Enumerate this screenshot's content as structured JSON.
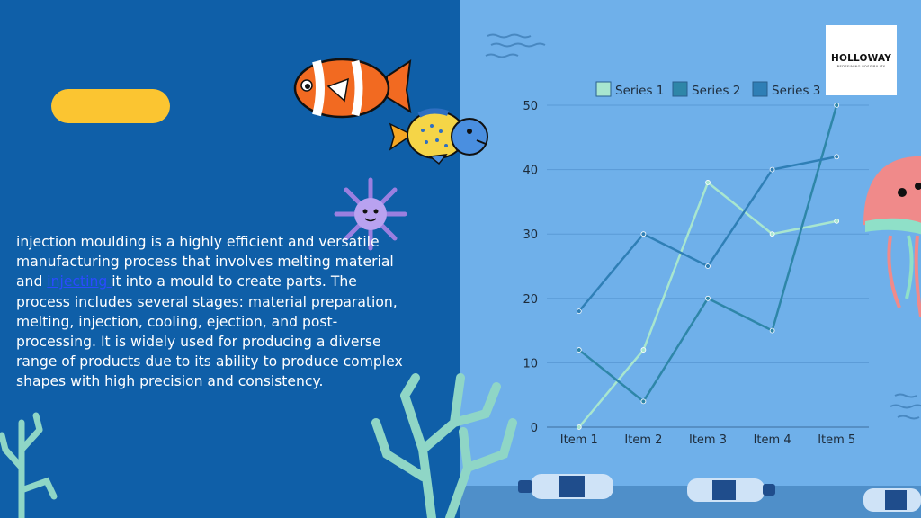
{
  "body": {
    "before": "injection moulding is a highly efficient and versatile manufacturing process that involves melting material and ",
    "link": "injecting ",
    "after": "it into a mould to create parts. The process includes several stages: material preparation, melting, injection, cooling, ejection, and post-processing. It is widely used for producing a diverse range of products due to its ability to produce complex shapes with high precision and consistency."
  },
  "logo": {
    "title": "HOLLOWAY",
    "tagline": "REDEFINING POSSIBILITY"
  },
  "colors": {
    "left_background": "#0f5fa8",
    "right_background": "#6fb0ea",
    "pill": "#fbc531",
    "series1": "#a8e6cf",
    "series2": "#2e86a8",
    "series3": "#2f7fb6"
  },
  "chart_data": {
    "type": "line",
    "categories": [
      "Item 1",
      "Item 2",
      "Item 3",
      "Item 4",
      "Item 5"
    ],
    "series": [
      {
        "name": "Series 1",
        "values": [
          0,
          12,
          38,
          30,
          32
        ]
      },
      {
        "name": "Series 2",
        "values": [
          12,
          4,
          20,
          15,
          50
        ]
      },
      {
        "name": "Series 3",
        "values": [
          18,
          30,
          25,
          40,
          42
        ]
      }
    ],
    "yticks": [
      "0",
      "10",
      "20",
      "30",
      "40",
      "50"
    ],
    "ylim": [
      0,
      50
    ],
    "grid": true,
    "legend": "top"
  }
}
